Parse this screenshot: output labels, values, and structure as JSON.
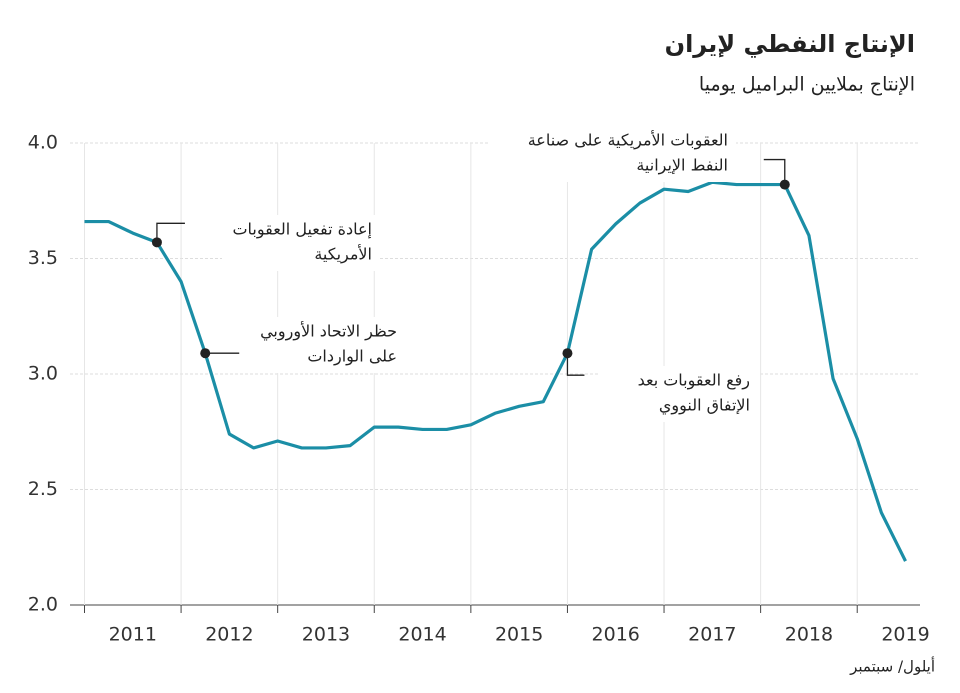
{
  "chart_data": {
    "type": "line",
    "title": "الإنتاج النفطي لإيران",
    "subtitle": "الإنتاج بملايين البراميل يوميا",
    "footnote": "أيلول/ سبتمبر",
    "x": [
      2011,
      2011.25,
      2011.5,
      2011.75,
      2012,
      2012.25,
      2012.5,
      2012.75,
      2013,
      2013.25,
      2013.5,
      2013.75,
      2014,
      2014.25,
      2014.5,
      2014.75,
      2015,
      2015.25,
      2015.5,
      2015.75,
      2016,
      2016.25,
      2016.5,
      2016.75,
      2017,
      2017.25,
      2017.5,
      2017.75,
      2018,
      2018.25,
      2018.5,
      2018.75,
      2019,
      2019.25,
      2019.5
    ],
    "series": [
      {
        "color": "#1b8ea6",
        "values": [
          3.66,
          3.66,
          3.61,
          3.57,
          3.4,
          3.09,
          2.74,
          2.68,
          2.71,
          2.68,
          2.68,
          2.69,
          2.77,
          2.77,
          2.76,
          2.76,
          2.78,
          2.83,
          2.86,
          2.88,
          3.09,
          3.54,
          3.65,
          3.74,
          3.8,
          3.79,
          3.83,
          3.82,
          3.82,
          3.82,
          3.6,
          2.98,
          2.72,
          2.4,
          2.19
        ]
      }
    ],
    "xlim": [
      2010.85,
      2019.65
    ],
    "ylim": [
      2.0,
      4.0
    ],
    "xticks": [
      {
        "value": 2011.5,
        "label": "2011"
      },
      {
        "value": 2012.5,
        "label": "2012"
      },
      {
        "value": 2013.5,
        "label": "2013"
      },
      {
        "value": 2014.5,
        "label": "2014"
      },
      {
        "value": 2015.5,
        "label": "2015"
      },
      {
        "value": 2016.5,
        "label": "2016"
      },
      {
        "value": 2017.5,
        "label": "2017"
      },
      {
        "value": 2018.5,
        "label": "2018"
      },
      {
        "value": 2019.5,
        "label": "2019"
      }
    ],
    "yticks": [
      {
        "value": 2.0,
        "label": "2.0"
      },
      {
        "value": 2.5,
        "label": "2.5"
      },
      {
        "value": 3.0,
        "label": "3.0"
      },
      {
        "value": 3.5,
        "label": "3.5"
      },
      {
        "value": 4.0,
        "label": "4.0"
      }
    ],
    "grid": true,
    "annotations": [
      {
        "lines": [
          "إعادة تفعيل العقوبات",
          "الأمريكية"
        ]
      },
      {
        "lines": [
          "حظر الاتحاد الأوروبي",
          "على الواردات"
        ]
      },
      {
        "lines": [
          "رفع العقوبات بعد",
          "الإتفاق النووي"
        ]
      },
      {
        "lines": [
          "العقوبات الأمريكية على صناعة",
          "النفط الإيرانية"
        ]
      }
    ]
  }
}
